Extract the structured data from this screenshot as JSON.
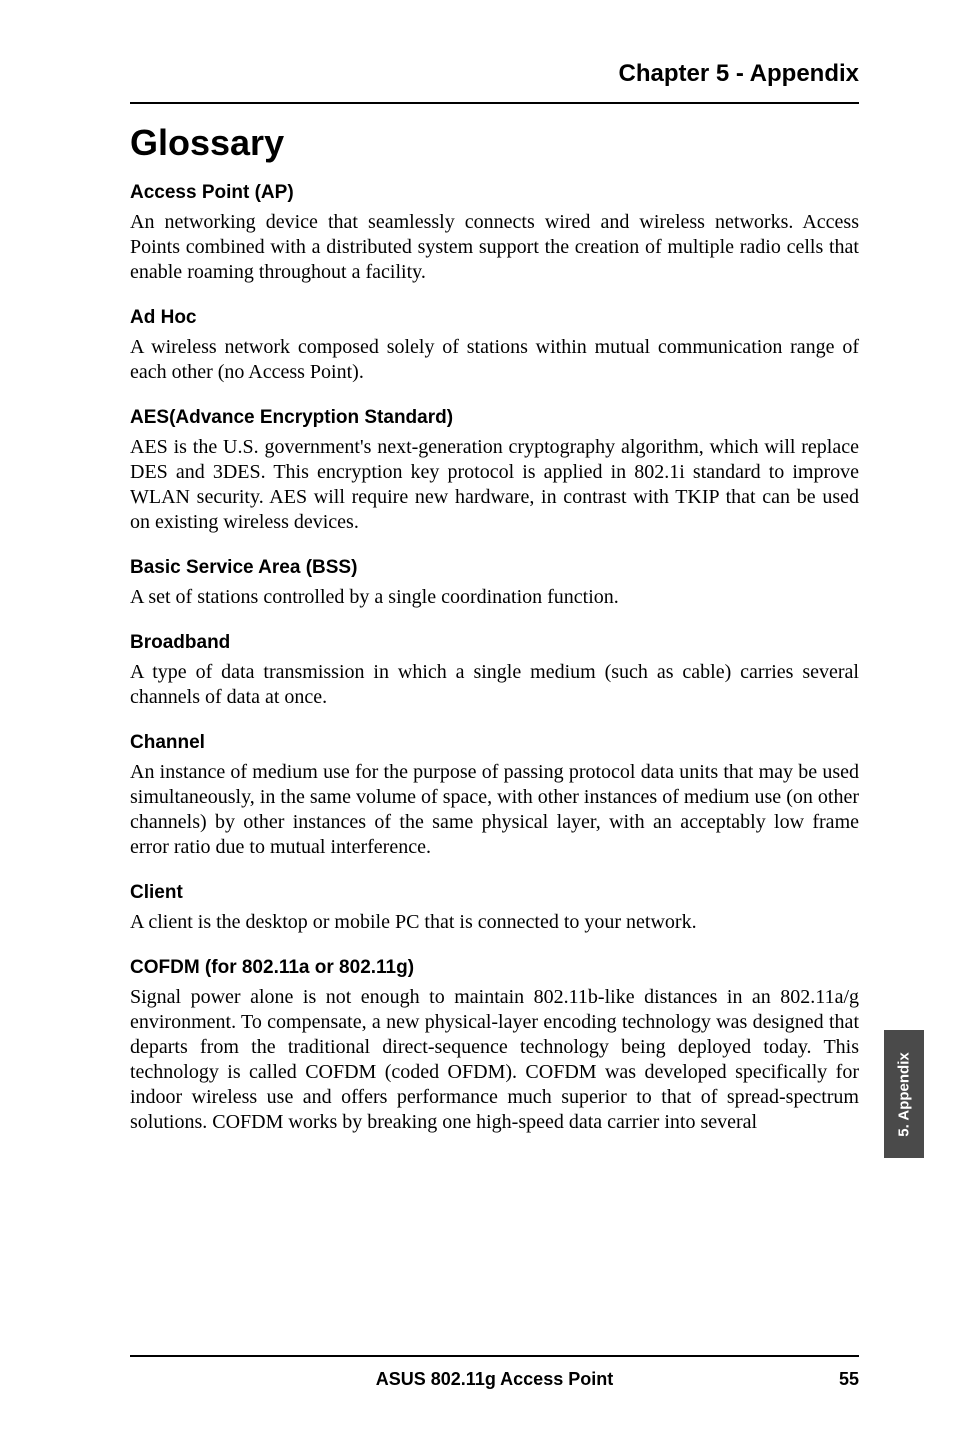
{
  "chapter_header": "Chapter 5 - Appendix",
  "main_title": "Glossary",
  "terms": [
    {
      "heading": "Access Point (AP)",
      "body": "An networking device that seamlessly connects wired and wireless networks. Access Points combined with a distributed system support the creation of multiple radio cells that enable roaming throughout a facility."
    },
    {
      "heading": "Ad Hoc",
      "body": "A wireless network composed solely of stations within mutual communication range of each other (no Access Point)."
    },
    {
      "heading": "AES(Advance Encryption Standard)",
      "body": "AES is the U.S. government's next-generation cryptography algorithm, which will replace DES and 3DES. This encryption key protocol is applied in 802.1i standard to improve WLAN security. AES will require new hardware, in contrast with TKIP that can be used on existing wireless devices."
    },
    {
      "heading": "Basic Service Area (BSS)",
      "body": "A set of stations controlled by a single coordination function."
    },
    {
      "heading": "Broadband",
      "body": "A type of data transmission in which a single medium (such as cable) carries several channels of data at once."
    },
    {
      "heading": "Channel",
      "body": "An instance of medium use for the purpose of passing protocol data units that may be used simultaneously, in the same volume of space, with other instances of medium use (on other channels) by other instances of the same physical layer, with an acceptably low frame error ratio due to mutual interference."
    },
    {
      "heading": "Client",
      "body": "A client is the desktop or mobile PC that is connected to your network."
    },
    {
      "heading": "COFDM (for 802.11a or 802.11g)",
      "body": "Signal power alone is not enough to maintain 802.11b-like distances in an 802.11a/g environment. To compensate, a new physical-layer encoding technology was designed that departs from the traditional direct-sequence technology being deployed today. This technology is called COFDM (coded OFDM). COFDM was developed specifically for indoor wireless use and offers performance much superior to that of spread-spectrum solutions. COFDM works by breaking one high-speed data carrier into several"
    }
  ],
  "side_tab": "5. Appendix",
  "footer_center": "ASUS 802.11g Access Point",
  "footer_page": "55",
  "colors": {
    "tab_bg": "#4a4a4a",
    "tab_text": "#ffffff",
    "page_bg": "#ffffff",
    "text": "#000000"
  }
}
